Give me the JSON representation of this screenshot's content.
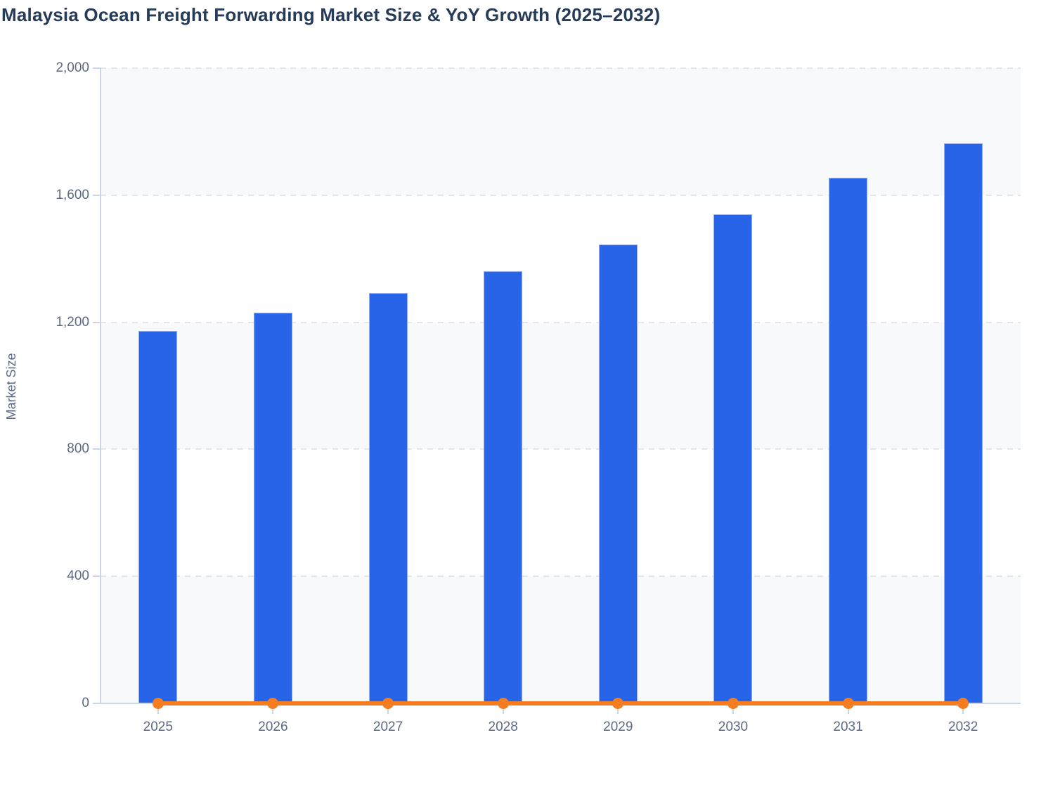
{
  "title": "Malaysia Ocean Freight Forwarding Market Size & YoY Growth (2025–2032)",
  "y_axis": {
    "label": "Market Size",
    "ticks": [
      {
        "label": "2,000",
        "value": 2000
      },
      {
        "label": "1,600",
        "value": 1600
      },
      {
        "label": "1,200",
        "value": 1200
      },
      {
        "label": "800",
        "value": 800
      },
      {
        "label": "400",
        "value": 400
      },
      {
        "label": "0",
        "value": 0
      }
    ]
  },
  "x_axis": {
    "categories": [
      "2025",
      "2026",
      "2027",
      "2028",
      "2029",
      "2030",
      "2031",
      "2032"
    ]
  },
  "chart_data": {
    "type": "bar",
    "title": "Malaysia Ocean Freight Forwarding Market Size & YoY Growth (2025–2032)",
    "categories": [
      "2025",
      "2026",
      "2027",
      "2028",
      "2029",
      "2030",
      "2031",
      "2032"
    ],
    "series": [
      {
        "name": "Market Size",
        "type": "bar",
        "color": "#2764e8",
        "values": [
          1173,
          1230,
          1292,
          1361,
          1445,
          1540,
          1655,
          1763
        ]
      },
      {
        "name": "YoY Growth",
        "type": "line",
        "color": "#f57d1f",
        "marker": "circle",
        "values": [
          0,
          0,
          0,
          0,
          0,
          0,
          0,
          0
        ],
        "rendered_note": "line is flat at the zero baseline of the visible axis; growth values are not labeled in the image"
      }
    ],
    "xlabel": "",
    "ylabel": "Market Size",
    "ylim": [
      0,
      2000
    ],
    "ytick_step": 400,
    "grid": "horizontal dashed",
    "band_shading": "alternating horizontal bands",
    "legend": "none"
  },
  "colors": {
    "title": "#253b58",
    "axis_text": "#5b6a84",
    "axis_line": "#ccd6e9",
    "gridline": "#e3e6ec",
    "band": "#f8f9fb",
    "bar_fill": "#2764e8",
    "bar_border": "#94aef0",
    "line_orange": "#f57d1f",
    "background": "#ffffff"
  }
}
